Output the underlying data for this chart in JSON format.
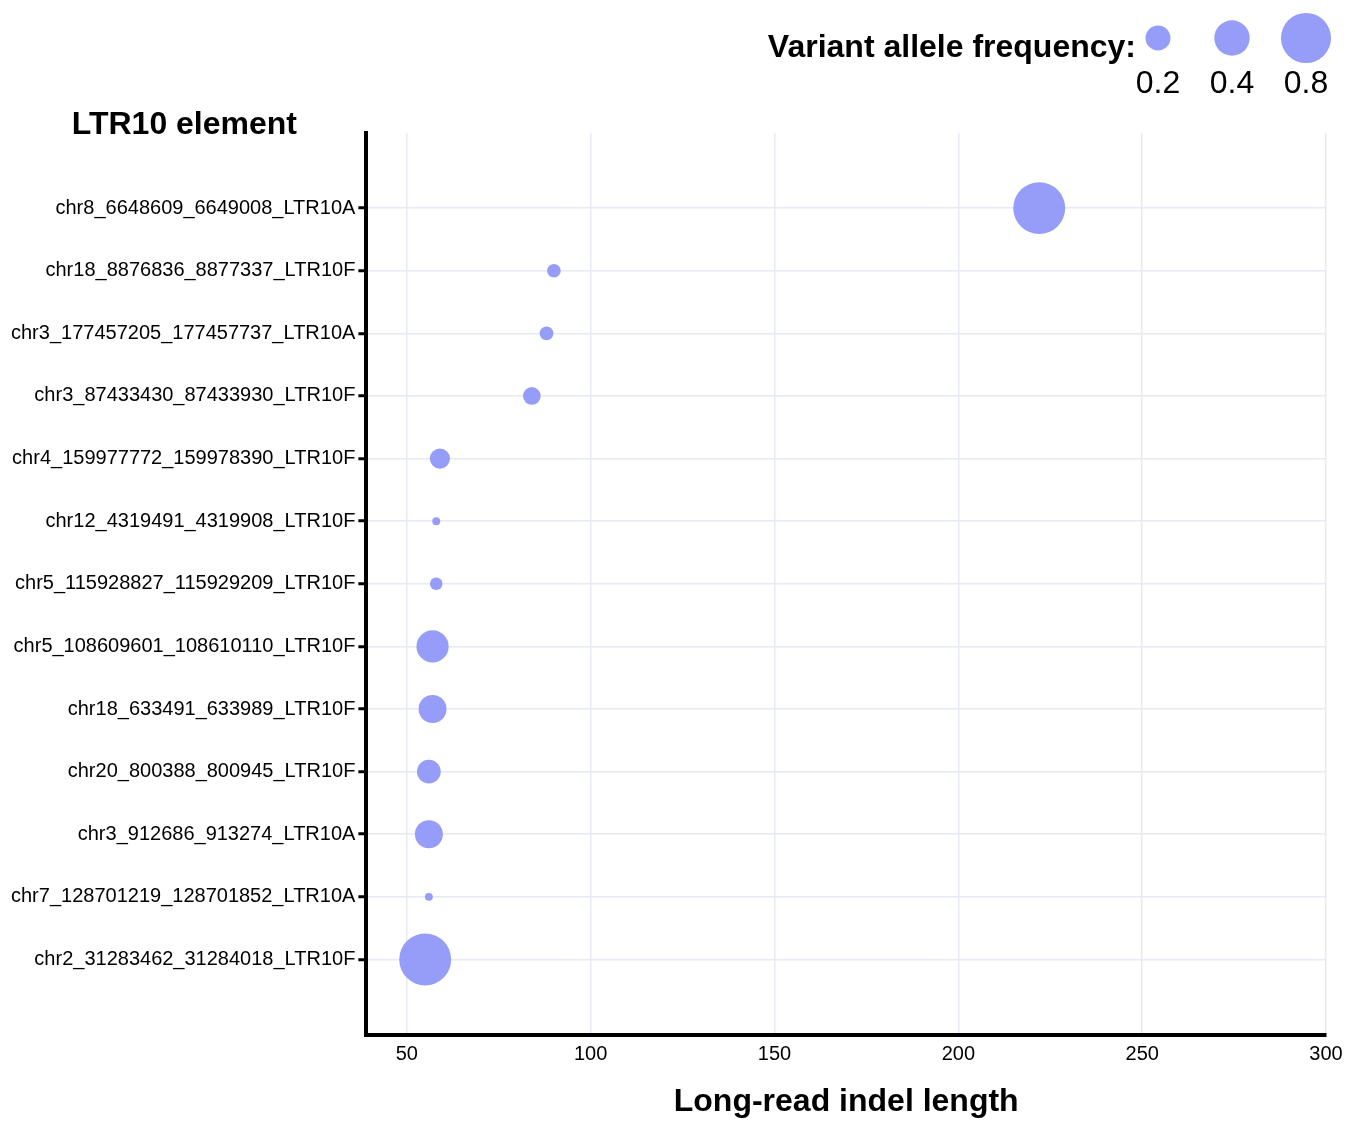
{
  "chart_data": {
    "type": "bubble",
    "orientation": "horizontal",
    "xlabel": "Long-read indel length",
    "ylabel": "LTR10 element",
    "legend_title": "Variant allele frequency:",
    "size_legend": [
      0.2,
      0.4,
      0.8
    ],
    "categories": [
      "chr8_6648609_6649008_LTR10A",
      "chr18_8876836_8877337_LTR10F",
      "chr3_177457205_177457737_LTR10A",
      "chr3_87433430_87433930_LTR10F",
      "chr4_159977772_159978390_LTR10F",
      "chr12_4319491_4319908_LTR10F",
      "chr5_115928827_115929209_LTR10F",
      "chr5_108609601_108610110_LTR10F",
      "chr18_633491_633989_LTR10F",
      "chr20_800388_800945_LTR10F",
      "chr3_912686_913274_LTR10A",
      "chr7_128701219_128701852_LTR10A",
      "chr2_31283462_31284018_LTR10F"
    ],
    "values": [
      222,
      90,
      88,
      84,
      59,
      58,
      58,
      57,
      57,
      56,
      56,
      56,
      55
    ],
    "sizes": [
      0.86,
      0.06,
      0.06,
      0.1,
      0.13,
      0.02,
      0.05,
      0.33,
      0.25,
      0.18,
      0.25,
      0.02,
      0.86
    ],
    "color": "#8f98f8",
    "xlim": [
      39,
      300
    ],
    "xticks": [
      50,
      100,
      150,
      200,
      250,
      300
    ],
    "grid": true
  }
}
